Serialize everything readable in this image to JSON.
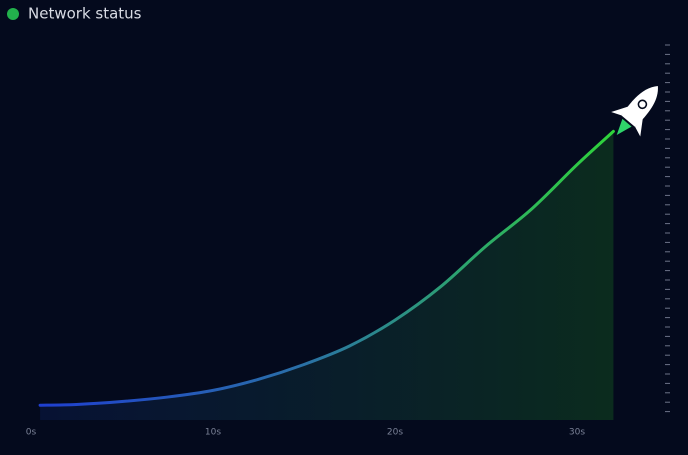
{
  "chart_data": {
    "type": "area",
    "x": [
      0.5,
      2.5,
      5,
      7.5,
      10,
      12.5,
      15,
      17.5,
      20,
      22.5,
      25,
      27.5,
      30,
      32
    ],
    "series": [
      {
        "name": "Network status",
        "color": "#22b14c",
        "values": [
          4,
          4.2,
          5,
          6.2,
          8,
          11,
          15,
          20,
          27,
          36,
          47,
          57,
          69,
          78
        ]
      }
    ],
    "xlim": [
      0,
      34
    ],
    "ylim": [
      0,
      100
    ],
    "xticks": [
      {
        "value": 0,
        "label": "0s"
      },
      {
        "value": 10,
        "label": "10s"
      },
      {
        "value": 20,
        "label": "20s"
      },
      {
        "value": 30,
        "label": "30s"
      }
    ]
  }
}
